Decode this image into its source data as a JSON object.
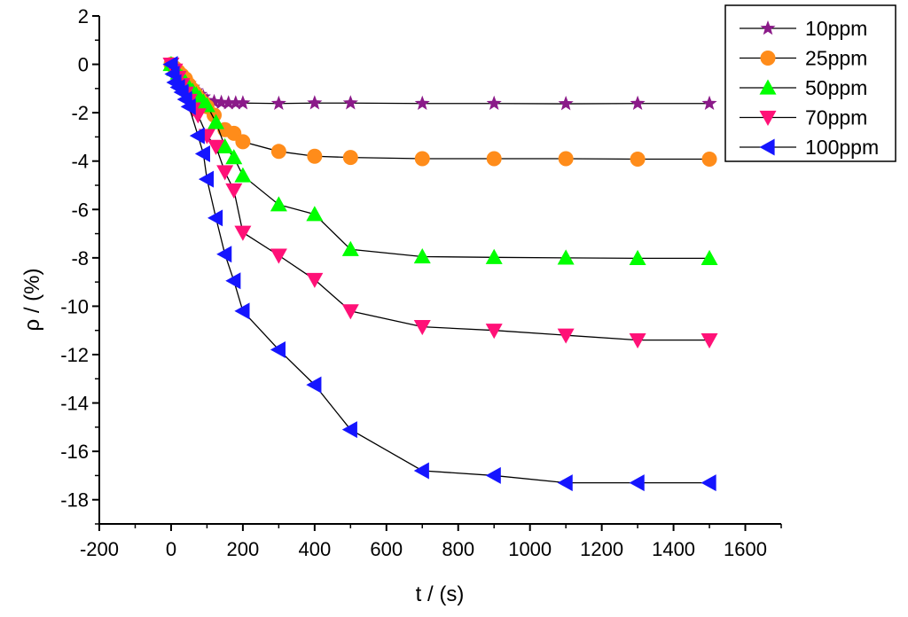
{
  "chart_data": {
    "type": "line",
    "title": "",
    "xlabel": "t / (s)",
    "ylabel": "ρ / (%)",
    "xlim": [
      -200,
      1700
    ],
    "ylim": [
      -19,
      2
    ],
    "xticks": [
      -200,
      0,
      200,
      400,
      600,
      800,
      1000,
      1200,
      1400,
      1600
    ],
    "yticks": [
      2,
      0,
      -2,
      -4,
      -6,
      -8,
      -10,
      -12,
      -14,
      -16,
      -18
    ],
    "grid": false,
    "legend_position": "top-right",
    "series": [
      {
        "name": "10ppm",
        "marker": "star",
        "color": "#8B1A89",
        "x": [
          0,
          10,
          20,
          30,
          40,
          50,
          60,
          70,
          80,
          90,
          100,
          120,
          140,
          160,
          180,
          200,
          300,
          400,
          500,
          700,
          900,
          1100,
          1300,
          1500
        ],
        "y": [
          0,
          -0.2,
          -0.35,
          -0.5,
          -0.65,
          -0.8,
          -0.95,
          -1.1,
          -1.25,
          -1.35,
          -1.5,
          -1.55,
          -1.58,
          -1.6,
          -1.6,
          -1.6,
          -1.62,
          -1.6,
          -1.6,
          -1.62,
          -1.62,
          -1.63,
          -1.62,
          -1.62
        ]
      },
      {
        "name": "25ppm",
        "marker": "circle",
        "color": "#FF8C1A",
        "x": [
          0,
          10,
          20,
          30,
          40,
          50,
          60,
          70,
          80,
          90,
          100,
          120,
          150,
          175,
          200,
          300,
          400,
          500,
          700,
          900,
          1100,
          1300,
          1500
        ],
        "y": [
          0,
          -0.15,
          -0.3,
          -0.45,
          -0.6,
          -0.85,
          -1.05,
          -1.25,
          -1.45,
          -1.6,
          -1.75,
          -2.1,
          -2.7,
          -2.85,
          -3.2,
          -3.6,
          -3.8,
          -3.85,
          -3.9,
          -3.9,
          -3.9,
          -3.92,
          -3.92
        ]
      },
      {
        "name": "50ppm",
        "marker": "triangle-up",
        "color": "#00FF00",
        "x": [
          0,
          10,
          20,
          30,
          40,
          50,
          60,
          70,
          80,
          90,
          100,
          125,
          150,
          175,
          200,
          300,
          400,
          500,
          700,
          900,
          1100,
          1300,
          1500
        ],
        "y": [
          0,
          -0.2,
          -0.35,
          -0.55,
          -0.75,
          -0.95,
          -1.1,
          -1.25,
          -1.4,
          -1.55,
          -1.7,
          -2.4,
          -3.4,
          -3.85,
          -4.6,
          -5.8,
          -6.2,
          -7.65,
          -7.95,
          -7.98,
          -8.0,
          -8.02,
          -8.02
        ]
      },
      {
        "name": "70ppm",
        "marker": "triangle-down",
        "color": "#FF1177",
        "x": [
          0,
          10,
          20,
          30,
          40,
          50,
          60,
          75,
          100,
          125,
          150,
          175,
          200,
          300,
          400,
          500,
          700,
          900,
          1100,
          1300,
          1500
        ],
        "y": [
          0,
          -0.25,
          -0.55,
          -0.85,
          -1.2,
          -1.5,
          -1.85,
          -2.1,
          -2.95,
          -3.4,
          -4.45,
          -5.2,
          -6.95,
          -7.9,
          -8.9,
          -10.2,
          -10.85,
          -11.0,
          -11.2,
          -11.4,
          -11.4
        ]
      },
      {
        "name": "100ppm",
        "marker": "triangle-left",
        "color": "#1515FF",
        "x": [
          0,
          5,
          10,
          20,
          30,
          40,
          50,
          75,
          90,
          100,
          125,
          150,
          175,
          200,
          300,
          400,
          500,
          700,
          900,
          1100,
          1300,
          1500
        ],
        "y": [
          0,
          -0.4,
          -0.75,
          -0.95,
          -1.15,
          -1.45,
          -1.75,
          -2.95,
          -3.7,
          -4.75,
          -6.35,
          -7.85,
          -8.95,
          -10.2,
          -11.8,
          -13.25,
          -15.1,
          -16.8,
          -17.0,
          -17.3,
          -17.3,
          -17.3
        ]
      }
    ]
  }
}
